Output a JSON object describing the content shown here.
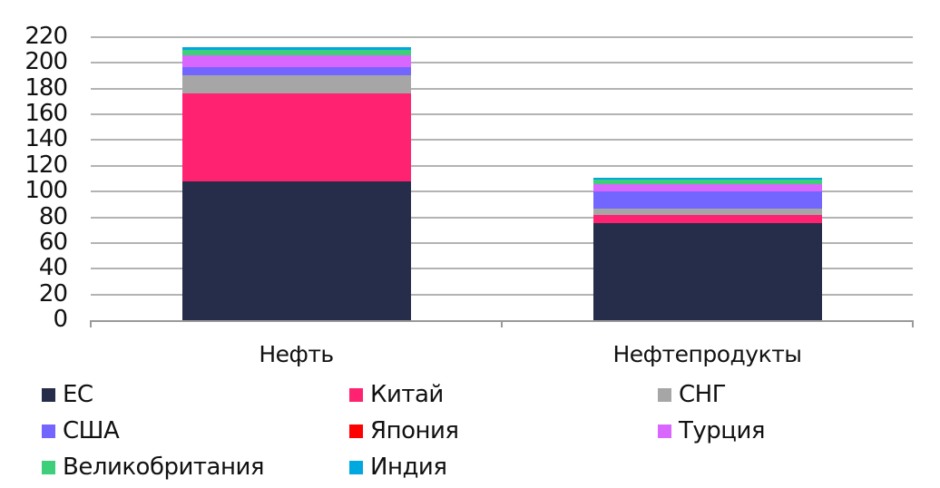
{
  "chart_data": {
    "type": "bar",
    "stacked": true,
    "title": "",
    "xlabel": "",
    "ylabel": "",
    "ylim": [
      0,
      220
    ],
    "yticks": [
      0,
      20,
      40,
      60,
      80,
      100,
      120,
      140,
      160,
      180,
      200,
      220
    ],
    "ytick_labels": [
      "0",
      "20",
      "40",
      "60",
      "80",
      "100",
      "120",
      "140",
      "160",
      "180",
      "200",
      "220"
    ],
    "grid": true,
    "legend_position": "bottom",
    "categories": [
      "Нефть",
      "Нефтепродукты"
    ],
    "series": [
      {
        "name": "ЕС",
        "color": "#252d4a",
        "values": [
          108,
          75.5
        ]
      },
      {
        "name": "Китай",
        "color": "#ff2270",
        "values": [
          68.5,
          6.5
        ]
      },
      {
        "name": "СНГ",
        "color": "#a6a6a6",
        "values": [
          14,
          4.7
        ]
      },
      {
        "name": "США",
        "color": "#7366ff",
        "values": [
          6.5,
          13.3
        ]
      },
      {
        "name": "Япония",
        "color": "#ff0000",
        "values": [
          0,
          0
        ]
      },
      {
        "name": "Турция",
        "color": "#d966ff",
        "values": [
          9,
          6
        ]
      },
      {
        "name": "Великобритания",
        "color": "#3ecf7a",
        "values": [
          4,
          3
        ]
      },
      {
        "name": "Индия",
        "color": "#00a8e0",
        "values": [
          2,
          1.7
        ]
      }
    ]
  },
  "legend": [
    {
      "label": "ЕС",
      "color": "#252d4a"
    },
    {
      "label": "Китай",
      "color": "#ff2270"
    },
    {
      "label": "СНГ",
      "color": "#a6a6a6"
    },
    {
      "label": "США",
      "color": "#7366ff"
    },
    {
      "label": "Япония",
      "color": "#ff0000"
    },
    {
      "label": "Турция",
      "color": "#d966ff"
    },
    {
      "label": "Великобритания",
      "color": "#3ecf7a"
    },
    {
      "label": "Индия",
      "color": "#00a8e0"
    }
  ]
}
